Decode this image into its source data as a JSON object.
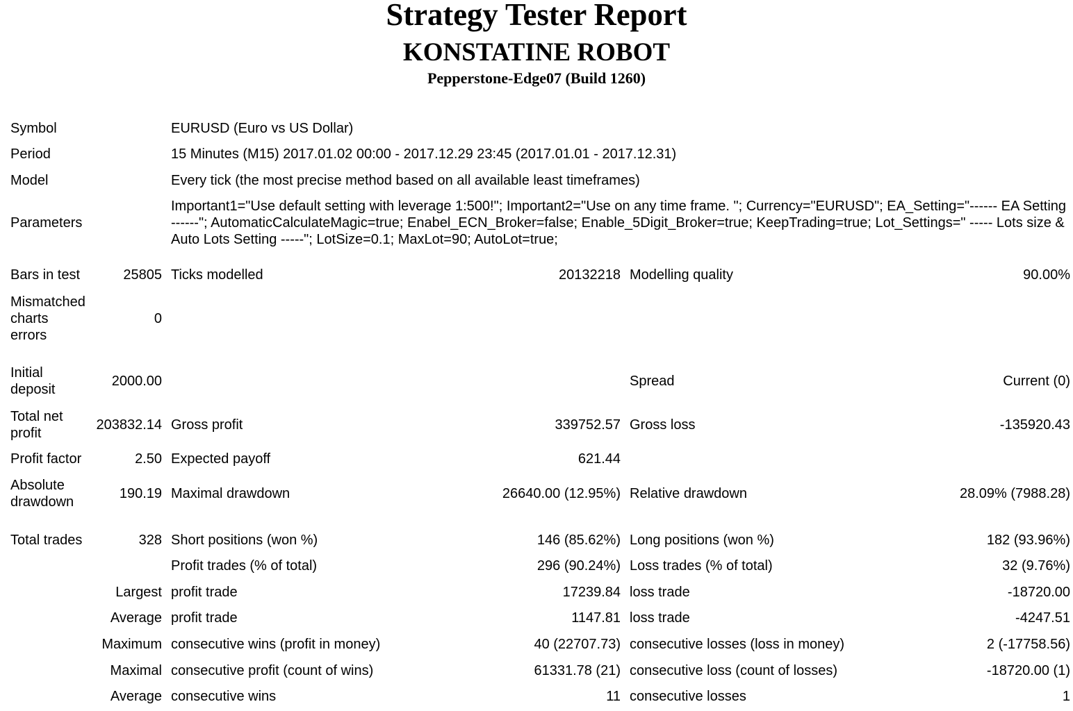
{
  "header": {
    "title": "Strategy Tester Report",
    "robot": "KONSTATINE ROBOT",
    "server": "Pepperstone-Edge07 (Build 1260)"
  },
  "info": {
    "symbol": {
      "label": "Symbol",
      "value": "EURUSD (Euro vs US Dollar)"
    },
    "period": {
      "label": "Period",
      "value": "15 Minutes (M15) 2017.01.02 00:00 - 2017.12.29 23:45 (2017.01.01 - 2017.12.31)"
    },
    "model": {
      "label": "Model",
      "value": "Every tick (the most precise method based on all available least timeframes)"
    },
    "parameters": {
      "label": "Parameters",
      "value": "Important1=\"Use default setting with leverage 1:500!\"; Important2=\"Use on any time frame. \"; Currency=\"EURUSD\"; EA_Setting=\"------ EA Setting ------\"; AutomaticCalculateMagic=true; Enabel_ECN_Broker=false; Enable_5Digit_Broker=true; KeepTrading=true; Lot_Settings=\" ----- Lots size & Auto Lots Setting -----\"; LotSize=0.1; MaxLot=90; AutoLot=true;"
    }
  },
  "stats": [
    [
      "Bars in test",
      "25805",
      "Ticks modelled",
      "20132218",
      "Modelling quality",
      "90.00%"
    ],
    [
      "Mismatched\ncharts\nerrors",
      "0",
      "",
      "",
      "",
      ""
    ],
    [
      "Initial\ndeposit",
      "2000.00",
      "",
      "",
      "Spread",
      "Current (0)"
    ],
    [
      "Total net\nprofit",
      "203832.14",
      "Gross profit",
      "339752.57",
      "Gross loss",
      "-135920.43"
    ],
    [
      "Profit factor",
      "2.50",
      "Expected payoff",
      "621.44",
      "",
      ""
    ],
    [
      "Absolute\ndrawdown",
      "190.19",
      "Maximal drawdown",
      "26640.00 (12.95%)",
      "Relative drawdown",
      "28.09% (7988.28)"
    ],
    [
      "Total trades",
      "328",
      "Short positions (won %)",
      "146 (85.62%)",
      "Long positions (won %)",
      "182 (93.96%)"
    ],
    [
      "",
      "",
      "Profit trades (% of total)",
      "296 (90.24%)",
      "Loss trades (% of total)",
      "32 (9.76%)"
    ],
    [
      "",
      "Largest",
      "profit trade",
      "17239.84",
      "loss trade",
      "-18720.00"
    ],
    [
      "",
      "Average",
      "profit trade",
      "1147.81",
      "loss trade",
      "-4247.51"
    ],
    [
      "",
      "Maximum",
      "consecutive wins (profit in money)",
      "40 (22707.73)",
      "consecutive losses (loss in money)",
      "2 (-17758.56)"
    ],
    [
      "",
      "Maximal",
      "consecutive profit (count of wins)",
      "61331.78 (21)",
      "consecutive loss (count of losses)",
      "-18720.00 (1)"
    ],
    [
      "",
      "Average",
      "consecutive wins",
      "11",
      "consecutive losses",
      "1"
    ]
  ]
}
